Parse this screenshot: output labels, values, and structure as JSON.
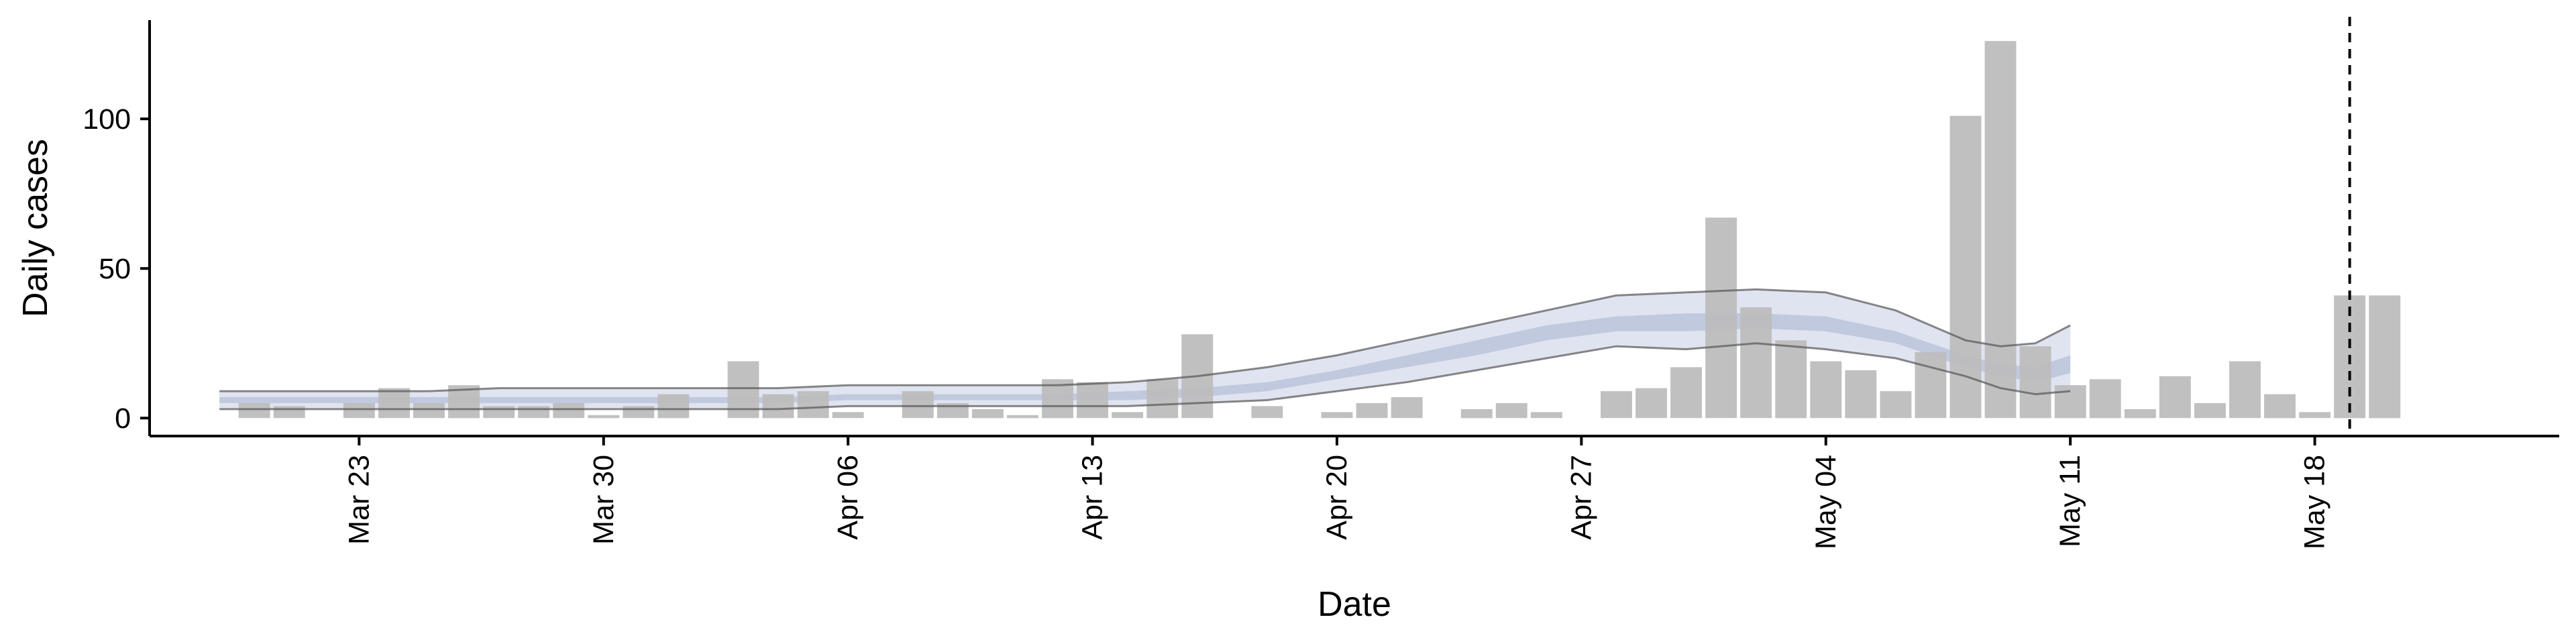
{
  "chart_data": {
    "type": "bar",
    "xlabel": "Date",
    "ylabel": "Daily cases",
    "x_tick_labels": [
      "Mar 23",
      "Mar 30",
      "Apr 06",
      "Apr 13",
      "Apr 20",
      "Apr 27",
      "May 04",
      "May 11",
      "May 18"
    ],
    "x_tick_dates": [
      "2020-03-23",
      "2020-03-30",
      "2020-04-06",
      "2020-04-13",
      "2020-04-20",
      "2020-04-27",
      "2020-05-04",
      "2020-05-11",
      "2020-05-18"
    ],
    "y_ticks": [
      0,
      50,
      100
    ],
    "xlim": [
      "2020-03-17",
      "2020-05-25"
    ],
    "ylim": [
      -6,
      133
    ],
    "grid": false,
    "vline_date": "2020-05-19",
    "bar_series": {
      "dates": [
        "2020-03-20",
        "2020-03-21",
        "2020-03-23",
        "2020-03-24",
        "2020-03-25",
        "2020-03-26",
        "2020-03-27",
        "2020-03-28",
        "2020-03-29",
        "2020-03-30",
        "2020-03-31",
        "2020-04-01",
        "2020-04-03",
        "2020-04-04",
        "2020-04-05",
        "2020-04-06",
        "2020-04-08",
        "2020-04-09",
        "2020-04-10",
        "2020-04-11",
        "2020-04-12",
        "2020-04-13",
        "2020-04-14",
        "2020-04-15",
        "2020-04-16",
        "2020-04-18",
        "2020-04-20",
        "2020-04-21",
        "2020-04-22",
        "2020-04-24",
        "2020-04-25",
        "2020-04-26",
        "2020-04-28",
        "2020-04-29",
        "2020-04-30",
        "2020-05-01",
        "2020-05-02",
        "2020-05-03",
        "2020-05-04",
        "2020-05-05",
        "2020-05-06",
        "2020-05-07",
        "2020-05-08",
        "2020-05-09",
        "2020-05-10",
        "2020-05-11",
        "2020-05-12",
        "2020-05-13",
        "2020-05-14",
        "2020-05-15",
        "2020-05-16",
        "2020-05-17",
        "2020-05-18",
        "2020-05-19",
        "2020-05-20"
      ],
      "values": [
        5,
        4,
        5,
        10,
        5,
        11,
        4,
        4,
        5,
        1,
        4,
        8,
        19,
        8,
        9,
        2,
        9,
        5,
        3,
        1,
        13,
        12,
        2,
        13,
        28,
        4,
        2,
        5,
        7,
        3,
        5,
        2,
        9,
        10,
        17,
        67,
        37,
        26,
        19,
        16,
        9,
        22,
        101,
        126,
        24,
        11,
        13,
        3,
        14,
        5,
        19,
        8,
        2,
        41,
        41
      ]
    },
    "estimate_band_90": {
      "dates": [
        "2020-03-19",
        "2020-03-21",
        "2020-03-23",
        "2020-03-25",
        "2020-03-27",
        "2020-03-29",
        "2020-03-31",
        "2020-04-02",
        "2020-04-04",
        "2020-04-06",
        "2020-04-08",
        "2020-04-10",
        "2020-04-12",
        "2020-04-14",
        "2020-04-16",
        "2020-04-18",
        "2020-04-20",
        "2020-04-22",
        "2020-04-24",
        "2020-04-26",
        "2020-04-28",
        "2020-04-30",
        "2020-05-02",
        "2020-05-04",
        "2020-05-06",
        "2020-05-08",
        "2020-05-09",
        "2020-05-10",
        "2020-05-11"
      ],
      "lower": [
        3,
        3,
        3,
        3,
        3,
        3,
        3,
        3,
        3,
        4,
        4,
        4,
        4,
        4,
        5,
        6,
        9,
        12,
        16,
        20,
        24,
        23,
        25,
        23,
        20,
        14,
        10,
        8,
        9
      ],
      "upper": [
        9,
        9,
        9,
        9,
        10,
        10,
        10,
        10,
        10,
        11,
        11,
        11,
        11,
        12,
        14,
        17,
        21,
        26,
        31,
        36,
        41,
        42,
        43,
        42,
        36,
        26,
        24,
        25,
        31
      ]
    },
    "estimate_band_50": {
      "dates": [
        "2020-03-19",
        "2020-03-21",
        "2020-03-23",
        "2020-03-25",
        "2020-03-27",
        "2020-03-29",
        "2020-03-31",
        "2020-04-02",
        "2020-04-04",
        "2020-04-06",
        "2020-04-08",
        "2020-04-10",
        "2020-04-12",
        "2020-04-14",
        "2020-04-16",
        "2020-04-18",
        "2020-04-20",
        "2020-04-22",
        "2020-04-24",
        "2020-04-26",
        "2020-04-28",
        "2020-04-30",
        "2020-05-02",
        "2020-05-04",
        "2020-05-06",
        "2020-05-08",
        "2020-05-09",
        "2020-05-10",
        "2020-05-11"
      ],
      "lower": [
        5,
        5,
        5,
        5,
        5,
        5,
        5,
        5,
        5,
        6,
        6,
        6,
        6,
        6,
        7,
        9,
        13,
        17,
        21,
        26,
        29,
        29,
        30,
        29,
        25,
        17,
        14,
        12,
        15
      ],
      "upper": [
        7,
        7,
        7,
        7,
        7,
        7,
        7,
        7,
        7,
        8,
        8,
        8,
        8,
        9,
        10,
        12,
        16,
        21,
        26,
        31,
        34,
        35,
        35,
        34,
        29,
        21,
        18,
        17,
        21
      ]
    },
    "colors": {
      "bars": "#bdbdbd",
      "band_90_fill": "#dde1ee",
      "band_50_fill": "#bcc5dc",
      "band_outline": "#555555",
      "axis": "#000000",
      "vline": "#000000"
    }
  }
}
